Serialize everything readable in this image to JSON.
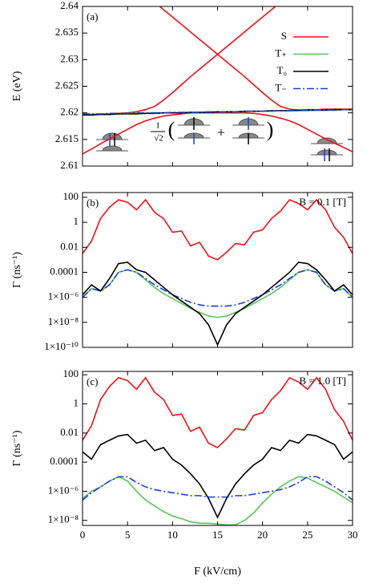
{
  "chart_data": [
    {
      "type": "line",
      "panel_label": "(a)",
      "ylabel": "E (eV)",
      "xlim": [
        0,
        30
      ],
      "xticks": [
        0,
        5,
        10,
        15,
        20,
        25,
        30
      ],
      "show_xtick_labels": false,
      "ylim": [
        2.61,
        2.64
      ],
      "yticks": [
        2.61,
        2.615,
        2.62,
        2.625,
        2.63,
        2.635,
        2.64
      ],
      "log": false,
      "legend": "upper right",
      "inset": {
        "numerator": "1",
        "denominator": "√2",
        "open": "(",
        "plus": "+",
        "close": ")"
      },
      "x": [
        0,
        1,
        2,
        3,
        4,
        5,
        6,
        7,
        8,
        9,
        10,
        11,
        12,
        13,
        14,
        15,
        16,
        17,
        18,
        19,
        20,
        21,
        22,
        23,
        24,
        25,
        26,
        27,
        28,
        29,
        30
      ],
      "series": [
        {
          "name": "S",
          "color": "#e8141a",
          "values": [
            2.6123,
            2.6132,
            2.6142,
            2.6151,
            2.616,
            2.6169,
            2.6178,
            2.6185,
            2.619,
            2.6194,
            2.6196,
            2.6198,
            2.62,
            2.62,
            2.62,
            2.62,
            2.62,
            2.62,
            2.62,
            2.6199,
            2.6197,
            2.6194,
            2.619,
            2.6185,
            2.6178,
            2.6169,
            2.616,
            2.6151,
            2.6143,
            2.6135,
            2.6127
          ]
        },
        {
          "color": "#e8141a",
          "values": [
            2.6197,
            2.6197,
            2.6198,
            2.6198,
            2.6199,
            2.62,
            2.6202,
            2.6206,
            2.6212,
            2.6224,
            2.6238,
            2.6253,
            2.6268,
            2.6282,
            2.6296,
            2.631,
            2.6324,
            2.6338,
            2.6352,
            2.6366,
            2.638,
            2.6394,
            2.6408,
            null,
            null,
            null,
            null,
            null,
            null,
            null,
            null
          ]
        },
        {
          "color": "#e8141a",
          "values": [
            null,
            null,
            null,
            null,
            null,
            null,
            null,
            null,
            2.6408,
            2.6394,
            2.638,
            2.6366,
            2.6352,
            2.6338,
            2.6324,
            2.631,
            2.6296,
            2.6282,
            2.6268,
            2.6253,
            2.6238,
            2.6224,
            2.6212,
            2.6207,
            2.6205,
            2.6206,
            2.6206,
            2.6207,
            2.6207,
            2.6207,
            2.6207
          ]
        },
        {
          "name": "T₊",
          "color": "#5cc45c",
          "values": [
            2.6197,
            2.6197,
            2.6198,
            2.6198,
            2.6198,
            2.6199,
            2.6199,
            2.6199,
            2.62,
            2.62,
            2.62,
            2.62,
            2.6201,
            2.6201,
            2.6201,
            2.6202,
            2.6202,
            2.6202,
            2.6202,
            2.6203,
            2.6203,
            2.6203,
            2.6204,
            2.6204,
            2.6204,
            2.6204,
            2.6205,
            2.6205,
            2.6205,
            2.6206,
            2.6206
          ]
        },
        {
          "name": "T₀",
          "color": "#000000",
          "values": [
            2.6196,
            2.6196,
            2.6197,
            2.6197,
            2.6198,
            2.6198,
            2.6198,
            2.6199,
            2.6199,
            2.62,
            2.62,
            2.62,
            2.6201,
            2.6201,
            2.6201,
            2.6202,
            2.6202,
            2.6202,
            2.6203,
            2.6203,
            2.6203,
            2.6204,
            2.6204,
            2.6204,
            2.6205,
            2.6205,
            2.6205,
            2.6205,
            2.6206,
            2.6206,
            2.6206
          ]
        },
        {
          "name": "T₋",
          "color": "#1f3fd6",
          "dash": "dash-dot",
          "values": [
            2.6198,
            2.6198,
            2.6198,
            2.6199,
            2.6199,
            2.6199,
            2.62,
            2.62,
            2.62,
            2.62,
            2.6201,
            2.6201,
            2.6201,
            2.6201,
            2.6202,
            2.6202,
            2.6202,
            2.6202,
            2.6203,
            2.6203,
            2.6203,
            2.6204,
            2.6204,
            2.6204,
            2.6204,
            2.6205,
            2.6205,
            2.6205,
            2.6205,
            2.6206,
            2.6206
          ]
        }
      ]
    },
    {
      "type": "line",
      "panel_label": "(b)",
      "annotation": "B = 0.1 [T]",
      "ylabel": "Γ (ns⁻¹)",
      "xlim": [
        0,
        30
      ],
      "xticks": [
        0,
        5,
        10,
        15,
        20,
        25,
        30
      ],
      "show_xtick_labels": false,
      "ylim": [
        1e-10,
        240
      ],
      "log": true,
      "yticks": [
        {
          "value": 1e-10,
          "label": "1×10⁻¹⁰"
        },
        {
          "value": 1e-08,
          "label": "1×10⁻⁸"
        },
        {
          "value": 1e-06,
          "label": "1×10⁻⁶"
        },
        0.0001,
        0.01,
        1,
        100
      ],
      "x": [
        0,
        1,
        2,
        3,
        4,
        5,
        6,
        7,
        8,
        9,
        10,
        11,
        12,
        13,
        14,
        15,
        16,
        17,
        18,
        19,
        20,
        21,
        22,
        23,
        24,
        25,
        26,
        27,
        28,
        29,
        30
      ],
      "series": [
        {
          "color": "#5cc45c",
          "values": [
            1e-06,
            5e-06,
            3.2e-06,
            1e-05,
            0.0001,
            0.00016,
            0.0001,
            2.5e-05,
            6.3e-06,
            2e-06,
            8e-07,
            3.2e-07,
            1.3e-07,
            6.3e-08,
            3.2e-08,
            2.5e-08,
            3.2e-08,
            6.3e-08,
            1.3e-07,
            3.2e-07,
            8e-07,
            2e-06,
            6.3e-06,
            2.5e-05,
            0.0001,
            0.00016,
            0.0001,
            1e-05,
            3.2e-06,
            5e-06,
            1e-06
          ]
        },
        {
          "color": "#1f3fd6",
          "dash": "dash-dot",
          "values": [
            1e-06,
            5e-06,
            3.2e-06,
            1e-05,
            0.0001,
            0.00016,
            0.0001,
            3.2e-05,
            1e-05,
            4e-06,
            1.6e-06,
            8e-07,
            4e-07,
            2.5e-07,
            2e-07,
            2e-07,
            2e-07,
            2.5e-07,
            4e-07,
            8e-07,
            1.6e-06,
            4e-06,
            1e-05,
            3.2e-05,
            0.0001,
            0.00016,
            0.0001,
            1e-05,
            3.2e-06,
            5e-06,
            1e-06
          ]
        },
        {
          "color": "#000000",
          "values": [
            1.6e-06,
            1e-05,
            3.2e-06,
            3.2e-05,
            0.0005,
            0.00063,
            0.00016,
            0.0001,
            2.5e-05,
            6.3e-06,
            1.6e-06,
            5e-07,
            1.6e-07,
            5e-08,
            6.3e-09,
            1.6e-10,
            6.3e-09,
            5e-08,
            1.6e-07,
            5e-07,
            1.6e-06,
            6.3e-06,
            2.5e-05,
            0.0001,
            0.00063,
            0.0005,
            0.00016,
            2.5e-05,
            3.2e-06,
            1e-05,
            1.6e-06
          ]
        },
        {
          "color": "#e8141a",
          "values": [
            0.0032,
            0.032,
            2,
            16,
            63,
            40,
            10,
            63,
            6.3,
            2,
            0.16,
            0.2,
            0.013,
            0.025,
            0.002,
            0.001,
            0.004,
            0.02,
            0.016,
            0.16,
            0.25,
            2,
            8,
            63,
            32,
            10,
            63,
            10,
            0.4,
            0.063,
            0.0032
          ]
        }
      ]
    },
    {
      "type": "line",
      "panel_label": "(c)",
      "annotation": "B = 1.0 [T]",
      "ylabel": "Γ (ns⁻¹)",
      "xlabel": "F (kV/cm)",
      "xlim": [
        0,
        30
      ],
      "xticks": [
        0,
        5,
        10,
        15,
        20,
        25,
        30
      ],
      "show_xtick_labels": true,
      "ylim": [
        4.5e-09,
        170
      ],
      "log": true,
      "yticks": [
        {
          "value": 1e-08,
          "label": "1×10⁻⁸"
        },
        {
          "value": 1e-06,
          "label": "1×10⁻⁶"
        },
        0.0001,
        0.01,
        1,
        100
      ],
      "x": [
        0,
        1,
        2,
        3,
        4,
        5,
        6,
        7,
        8,
        9,
        10,
        11,
        12,
        13,
        14,
        15,
        16,
        17,
        18,
        19,
        20,
        21,
        22,
        23,
        24,
        25,
        26,
        27,
        28,
        29,
        30
      ],
      "series": [
        {
          "color": "#5cc45c",
          "values": [
            3.2e-07,
            1e-06,
            2e-06,
            5e-06,
            1e-05,
            5e-06,
            1e-06,
            2.5e-07,
            1e-07,
            4e-08,
            2e-08,
            1.3e-08,
            8e-09,
            6.3e-09,
            6.3e-09,
            5.6e-09,
            5e-09,
            5e-09,
            1e-08,
            3.2e-08,
            1.6e-07,
            6.3e-07,
            2e-06,
            5e-06,
            1e-05,
            8e-06,
            4e-06,
            2e-06,
            1e-06,
            4e-07,
            1.6e-07
          ]
        },
        {
          "color": "#1f3fd6",
          "dash": "dash-dot",
          "values": [
            2.5e-07,
            8e-07,
            2e-06,
            5e-06,
            1e-05,
            1e-05,
            4e-06,
            2e-06,
            1.3e-06,
            1e-06,
            8e-07,
            6.3e-07,
            5e-07,
            5e-07,
            4e-07,
            4e-07,
            4e-07,
            5e-07,
            5e-07,
            6.3e-07,
            8e-07,
            1e-06,
            1.3e-06,
            2e-06,
            4e-06,
            1e-05,
            1e-05,
            5e-06,
            2e-06,
            8e-07,
            2.5e-07
          ]
        },
        {
          "color": "#000000",
          "values": [
            0.0005,
            0.00016,
            0.0016,
            0.0032,
            0.0063,
            0.008,
            0.002,
            0.0032,
            0.00063,
            0.001,
            0.00016,
            6.3e-05,
            1.6e-05,
            3.2e-06,
            3.2e-07,
            1.6e-08,
            3.2e-07,
            3.2e-06,
            1.6e-05,
            6.3e-05,
            0.00016,
            0.001,
            0.00063,
            0.0032,
            0.002,
            0.008,
            0.0063,
            0.0032,
            0.0016,
            0.00016,
            0.0005
          ]
        },
        {
          "color": "#e8141a",
          "values": [
            0.0032,
            0.032,
            2,
            16,
            63,
            40,
            10,
            63,
            6.3,
            2,
            0.16,
            0.2,
            0.013,
            0.025,
            0.002,
            0.001,
            0.004,
            0.02,
            0.016,
            0.16,
            0.25,
            2,
            8,
            63,
            32,
            10,
            63,
            10,
            0.4,
            0.063,
            0.0032
          ]
        }
      ]
    }
  ]
}
